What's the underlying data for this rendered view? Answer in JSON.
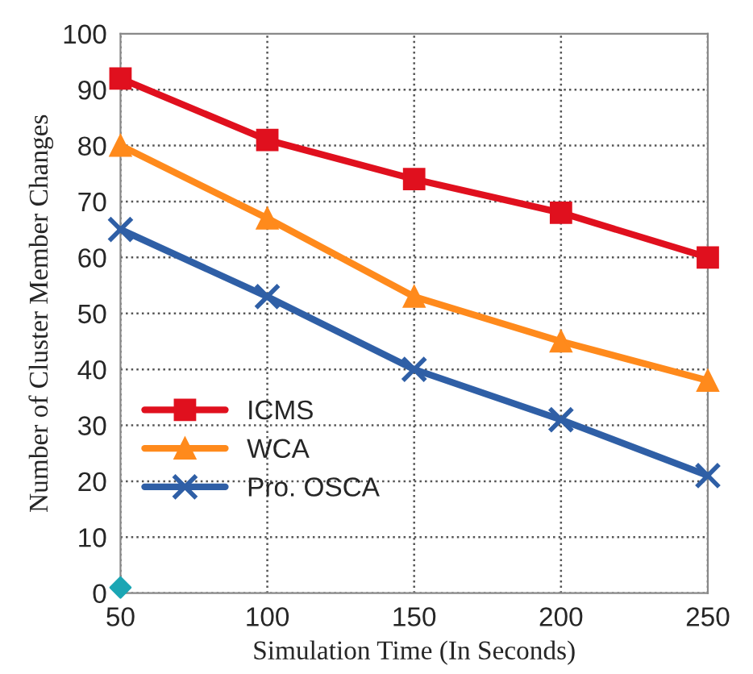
{
  "chart_data": {
    "type": "line",
    "xlabel": "Simulation Time (In Seconds)",
    "ylabel": "Number of Cluster Member Changes",
    "x": [
      50,
      100,
      150,
      200,
      250
    ],
    "series": [
      {
        "name": "ICMS",
        "color": "#e0101e",
        "marker": "square",
        "values": [
          92,
          81,
          74,
          68,
          60
        ]
      },
      {
        "name": "WCA",
        "color": "#ff8a1c",
        "marker": "triangle",
        "values": [
          80,
          67,
          53,
          45,
          38
        ]
      },
      {
        "name": "Pro. OSCA",
        "color": "#2f5fa6",
        "marker": "cross",
        "values": [
          65,
          53,
          40,
          31,
          21
        ]
      },
      {
        "type": "scatter",
        "color": "#1ba6b4",
        "marker": "diamond",
        "x": [
          50
        ],
        "values": [
          1
        ]
      }
    ],
    "xlim": [
      50,
      250
    ],
    "xticks": [
      50,
      100,
      150,
      200,
      250
    ],
    "ylim": [
      0,
      100
    ],
    "yticks": [
      0,
      10,
      20,
      30,
      40,
      50,
      60,
      70,
      80,
      90,
      100
    ],
    "grid": true,
    "legend": "bottom left",
    "line_style": "solid"
  }
}
